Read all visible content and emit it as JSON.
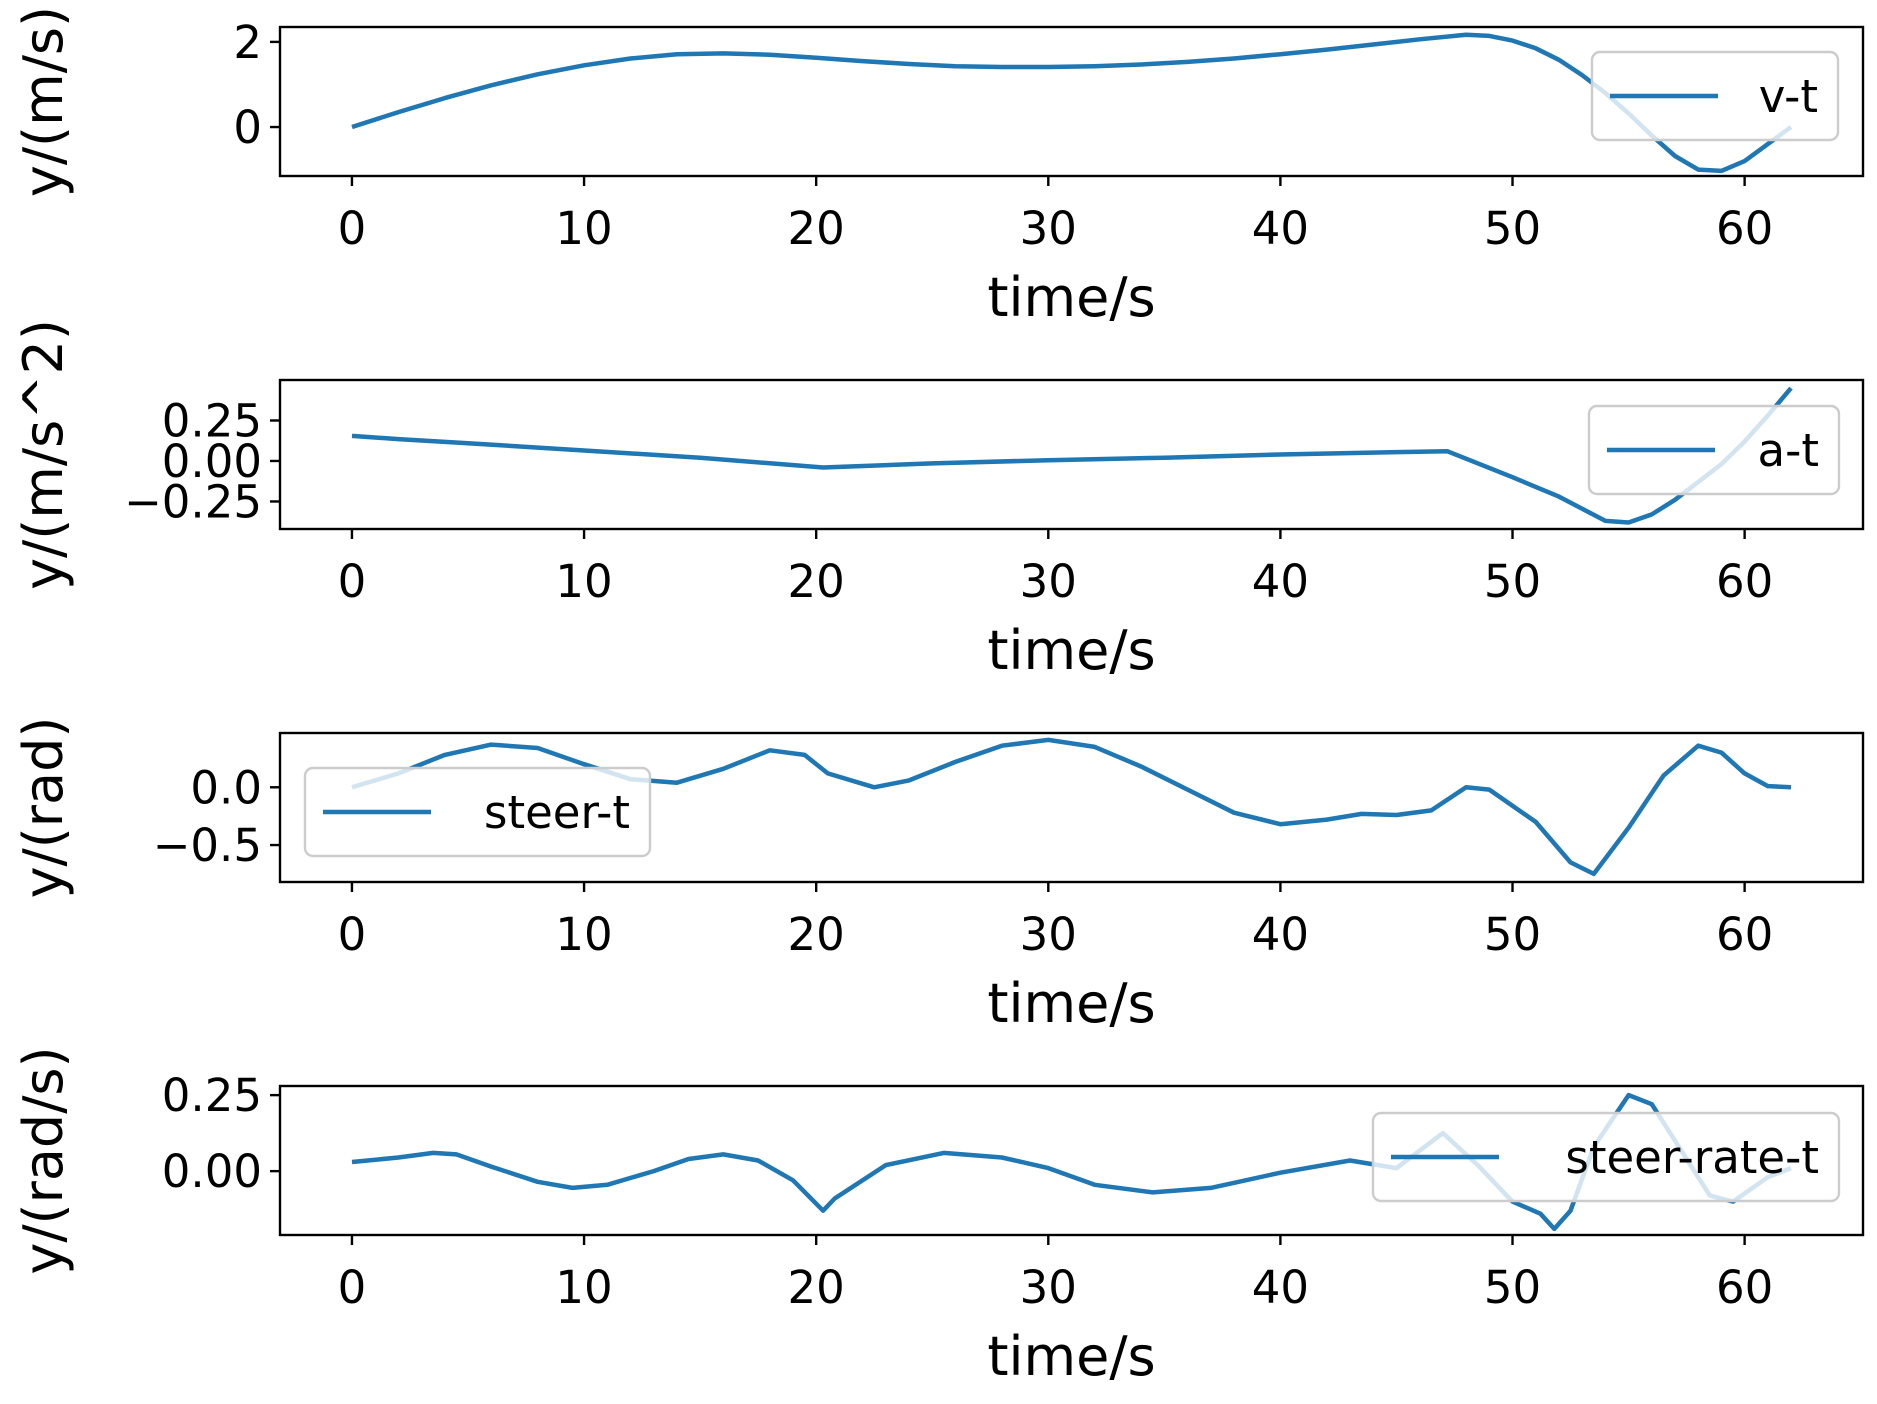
{
  "colors": {
    "series": "#1f77b4",
    "axes": "#000000",
    "legend_border": "#cccccc"
  },
  "chart_data": [
    {
      "type": "line",
      "title": "",
      "xlabel": "time/s",
      "ylabel": "y/(m/s)",
      "xlim": [
        -3.1,
        65.1
      ],
      "ylim": [
        -1.15,
        2.35
      ],
      "xticks": [
        0,
        10,
        20,
        30,
        40,
        50,
        60
      ],
      "xtick_labels": [
        "0",
        "10",
        "20",
        "30",
        "40",
        "50",
        "60"
      ],
      "yticks": [
        0,
        2
      ],
      "ytick_labels": [
        "0",
        "2"
      ],
      "legend_position": "upper right",
      "grid": false,
      "series": [
        {
          "name": "v-t",
          "color": "#1f77b4",
          "x": [
            0,
            2,
            4,
            6,
            8,
            10,
            12,
            14,
            16,
            18,
            20,
            22,
            24,
            26,
            28,
            30,
            32,
            34,
            36,
            38,
            40,
            42,
            44,
            46,
            48,
            49,
            50,
            51,
            52,
            53,
            54,
            55,
            56,
            57,
            58,
            59,
            60,
            61,
            62
          ],
          "y": [
            0,
            0.35,
            0.68,
            0.98,
            1.24,
            1.45,
            1.61,
            1.71,
            1.73,
            1.7,
            1.63,
            1.55,
            1.48,
            1.43,
            1.41,
            1.41,
            1.43,
            1.47,
            1.53,
            1.61,
            1.71,
            1.82,
            1.94,
            2.06,
            2.17,
            2.14,
            2.03,
            1.85,
            1.58,
            1.22,
            0.8,
            0.32,
            -0.2,
            -0.68,
            -1.0,
            -1.03,
            -0.8,
            -0.4,
            0
          ]
        }
      ]
    },
    {
      "type": "line",
      "title": "",
      "xlabel": "time/s",
      "ylabel": "y/(m/s^2)",
      "xlim": [
        -3.1,
        65.1
      ],
      "ylim": [
        -0.42,
        0.5
      ],
      "xticks": [
        0,
        10,
        20,
        30,
        40,
        50,
        60
      ],
      "xtick_labels": [
        "0",
        "10",
        "20",
        "30",
        "40",
        "50",
        "60"
      ],
      "yticks": [
        0.25,
        0.0,
        -0.25
      ],
      "ytick_labels": [
        "0.25",
        "0.00",
        "−0.25"
      ],
      "legend_position": "upper right",
      "grid": false,
      "series": [
        {
          "name": "a-t",
          "color": "#1f77b4",
          "x": [
            0,
            2,
            5,
            10,
            15,
            20.3,
            25,
            30,
            35,
            40,
            45,
            47.2,
            50,
            52,
            54,
            55,
            56,
            57,
            58,
            59,
            60,
            61,
            62
          ],
          "y": [
            0.155,
            0.135,
            0.11,
            0.065,
            0.02,
            -0.04,
            -0.015,
            0.005,
            0.02,
            0.04,
            0.055,
            0.06,
            -0.1,
            -0.22,
            -0.37,
            -0.38,
            -0.33,
            -0.24,
            -0.13,
            -0.02,
            0.12,
            0.28,
            0.45
          ]
        }
      ]
    },
    {
      "type": "line",
      "title": "",
      "xlabel": "time/s",
      "ylabel": "y/(rad)",
      "xlim": [
        -3.1,
        65.1
      ],
      "ylim": [
        -0.82,
        0.47
      ],
      "xticks": [
        0,
        10,
        20,
        30,
        40,
        50,
        60
      ],
      "xtick_labels": [
        "0",
        "10",
        "20",
        "30",
        "40",
        "50",
        "60"
      ],
      "yticks": [
        0.0,
        -0.5
      ],
      "ytick_labels": [
        "0.0",
        "−0.5"
      ],
      "legend_position": "upper left",
      "grid": false,
      "series": [
        {
          "name": "steer-t",
          "color": "#1f77b4",
          "x": [
            0,
            2,
            4,
            6,
            8,
            10,
            12,
            14,
            16,
            18,
            19.5,
            20.5,
            22.5,
            24,
            26,
            28,
            30,
            32,
            34,
            36,
            38,
            40,
            42,
            43.5,
            45,
            46.5,
            48,
            49,
            51,
            52.5,
            53.5,
            55,
            56.5,
            58,
            59,
            60,
            61,
            62
          ],
          "y": [
            0,
            0.12,
            0.28,
            0.37,
            0.34,
            0.2,
            0.07,
            0.04,
            0.16,
            0.32,
            0.28,
            0.12,
            0,
            0.06,
            0.22,
            0.36,
            0.41,
            0.35,
            0.18,
            -0.02,
            -0.22,
            -0.32,
            -0.28,
            -0.23,
            -0.24,
            -0.2,
            0,
            -0.02,
            -0.3,
            -0.65,
            -0.75,
            -0.35,
            0.1,
            0.36,
            0.3,
            0.12,
            0.01,
            0
          ]
        }
      ]
    },
    {
      "type": "line",
      "title": "",
      "xlabel": "time/s",
      "ylabel": "y/(rad/s)",
      "xlim": [
        -3.1,
        65.1
      ],
      "ylim": [
        -0.21,
        0.28
      ],
      "xticks": [
        0,
        10,
        20,
        30,
        40,
        50,
        60
      ],
      "xtick_labels": [
        "0",
        "10",
        "20",
        "30",
        "40",
        "50",
        "60"
      ],
      "yticks": [
        0.25,
        0.0
      ],
      "ytick_labels": [
        "0.25",
        "0.00"
      ],
      "legend_position": "upper right",
      "grid": false,
      "series": [
        {
          "name": "steer-rate-t",
          "color": "#1f77b4",
          "x": [
            0,
            2,
            3.5,
            4.5,
            6,
            8,
            9.5,
            11,
            13,
            14.5,
            16,
            17.5,
            19,
            20.3,
            20.8,
            23,
            25.5,
            28,
            30,
            32,
            34.5,
            37,
            40,
            43,
            45,
            47,
            48.5,
            50,
            51.2,
            51.8,
            52.5,
            53.5,
            55,
            56,
            57,
            58.5,
            59.5,
            61,
            62
          ],
          "y": [
            0.03,
            0.045,
            0.06,
            0.055,
            0.015,
            -0.035,
            -0.055,
            -0.045,
            0,
            0.04,
            0.055,
            0.035,
            -0.03,
            -0.13,
            -0.09,
            0.02,
            0.06,
            0.045,
            0.01,
            -0.045,
            -0.07,
            -0.055,
            -0.005,
            0.035,
            0.01,
            0.125,
            0.02,
            -0.1,
            -0.14,
            -0.19,
            -0.13,
            0.08,
            0.25,
            0.22,
            0.1,
            -0.08,
            -0.1,
            -0.02,
            0.01
          ]
        }
      ]
    }
  ]
}
